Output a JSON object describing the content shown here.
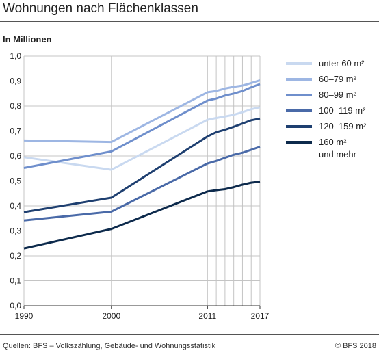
{
  "title": "Wohnungen nach Flächenklassen",
  "footer": {
    "source": "Quellen: BFS – Volkszählung, Gebäude- und Wohnungsstatistik",
    "copyright": "© BFS 2018"
  },
  "chart_data": {
    "type": "line",
    "ylabel": "In Millionen",
    "xlim": [
      1990,
      2017
    ],
    "ylim": [
      0,
      1.0
    ],
    "xticks": [
      1990,
      2000,
      2011,
      2017
    ],
    "xtick_labels": [
      "1990",
      "2000",
      "2011",
      "2017"
    ],
    "yticks": [
      0,
      0.1,
      0.2,
      0.3,
      0.4,
      0.5,
      0.6,
      0.7,
      0.8,
      0.9,
      1.0
    ],
    "ytick_labels": [
      "0,0",
      "0,1",
      "0,2",
      "0,3",
      "0,4",
      "0,5",
      "0,6",
      "0,7",
      "0,8",
      "0,9",
      "1,0"
    ],
    "grid": true,
    "legend_position": "right",
    "x": [
      1990,
      2000,
      2011,
      2012,
      2013,
      2014,
      2015,
      2016,
      2017
    ],
    "series": [
      {
        "name": "unter 60 m²",
        "color": "#c9d9f0",
        "values": [
          0.595,
          0.545,
          0.745,
          0.752,
          0.758,
          0.765,
          0.775,
          0.787,
          0.795
        ]
      },
      {
        "name": "60–79 m²",
        "color": "#9db6e3",
        "values": [
          0.662,
          0.656,
          0.855,
          0.86,
          0.87,
          0.877,
          0.882,
          0.892,
          0.903
        ]
      },
      {
        "name": "80–99 m²",
        "color": "#6f8fcc",
        "values": [
          0.552,
          0.618,
          0.822,
          0.83,
          0.842,
          0.85,
          0.86,
          0.875,
          0.888
        ]
      },
      {
        "name": "100–119 m²",
        "color": "#4a6aa8",
        "values": [
          0.342,
          0.377,
          0.57,
          0.58,
          0.593,
          0.605,
          0.613,
          0.625,
          0.637
        ]
      },
      {
        "name": "120–159 m²",
        "color": "#1e3f70",
        "values": [
          0.375,
          0.433,
          0.678,
          0.695,
          0.705,
          0.717,
          0.73,
          0.743,
          0.75
        ]
      },
      {
        "name": "160 m² und mehr",
        "color": "#0d2a4c",
        "values": [
          0.23,
          0.308,
          0.458,
          0.463,
          0.467,
          0.475,
          0.485,
          0.493,
          0.497
        ]
      }
    ]
  }
}
